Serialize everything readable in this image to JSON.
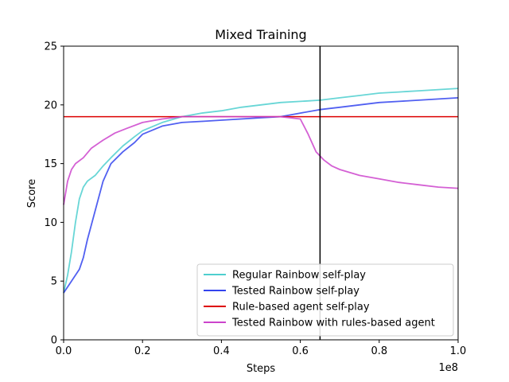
{
  "chart_data": {
    "type": "line",
    "title": "Mixed Training",
    "xlabel": "Steps",
    "ylabel": "Score",
    "x_offset_label": "1e8",
    "xlim": [
      0,
      1.0
    ],
    "ylim": [
      0,
      25
    ],
    "x_ticks": [
      "0.0",
      "0.2",
      "0.4",
      "0.6",
      "0.8",
      "1.0"
    ],
    "y_ticks": [
      "0",
      "5",
      "10",
      "15",
      "20",
      "25"
    ],
    "grid": false,
    "legend_position": "lower-right",
    "vline": {
      "x": 0.65,
      "color": "#000000"
    },
    "series": [
      {
        "name": "Regular Rainbow self-play",
        "color": "#4ecfcf",
        "x": [
          0.0,
          0.01,
          0.02,
          0.03,
          0.04,
          0.05,
          0.06,
          0.08,
          0.1,
          0.12,
          0.15,
          0.18,
          0.2,
          0.25,
          0.3,
          0.35,
          0.4,
          0.45,
          0.5,
          0.55,
          0.6,
          0.65,
          0.7,
          0.75,
          0.8,
          0.85,
          0.9,
          0.95,
          1.0
        ],
        "values": [
          4.0,
          5.5,
          7.5,
          10.0,
          12.0,
          13.0,
          13.5,
          14.0,
          14.8,
          15.5,
          16.5,
          17.3,
          17.8,
          18.5,
          19.0,
          19.3,
          19.5,
          19.8,
          20.0,
          20.2,
          20.3,
          20.4,
          20.6,
          20.8,
          21.0,
          21.1,
          21.2,
          21.3,
          21.4
        ]
      },
      {
        "name": "Tested Rainbow self-play",
        "color": "#3344ee",
        "x": [
          0.0,
          0.01,
          0.02,
          0.03,
          0.04,
          0.05,
          0.06,
          0.08,
          0.1,
          0.12,
          0.15,
          0.18,
          0.2,
          0.25,
          0.3,
          0.35,
          0.4,
          0.45,
          0.5,
          0.55,
          0.6,
          0.65,
          0.7,
          0.75,
          0.8,
          0.85,
          0.9,
          0.95,
          1.0
        ],
        "values": [
          4.0,
          4.5,
          5.0,
          5.5,
          6.0,
          7.0,
          8.5,
          11.0,
          13.5,
          15.0,
          16.0,
          16.8,
          17.5,
          18.2,
          18.5,
          18.6,
          18.7,
          18.8,
          18.9,
          19.0,
          19.3,
          19.6,
          19.8,
          20.0,
          20.2,
          20.3,
          20.4,
          20.5,
          20.6
        ]
      },
      {
        "name": "Rule-based agent self-play",
        "color": "#dd0000",
        "x": [
          0.0,
          1.0
        ],
        "values": [
          19.0,
          19.0
        ]
      },
      {
        "name": "Tested Rainbow with rules-based agent",
        "color": "#cc44cc",
        "x": [
          0.0,
          0.01,
          0.02,
          0.03,
          0.05,
          0.07,
          0.1,
          0.13,
          0.16,
          0.2,
          0.25,
          0.3,
          0.35,
          0.4,
          0.45,
          0.5,
          0.55,
          0.6,
          0.62,
          0.64,
          0.66,
          0.68,
          0.7,
          0.75,
          0.8,
          0.85,
          0.9,
          0.95,
          1.0
        ],
        "values": [
          11.5,
          13.5,
          14.5,
          15.0,
          15.5,
          16.3,
          17.0,
          17.6,
          18.0,
          18.5,
          18.8,
          19.0,
          19.0,
          19.0,
          19.0,
          19.0,
          19.0,
          18.8,
          17.5,
          16.0,
          15.3,
          14.8,
          14.5,
          14.0,
          13.7,
          13.4,
          13.2,
          13.0,
          12.9
        ]
      }
    ]
  }
}
